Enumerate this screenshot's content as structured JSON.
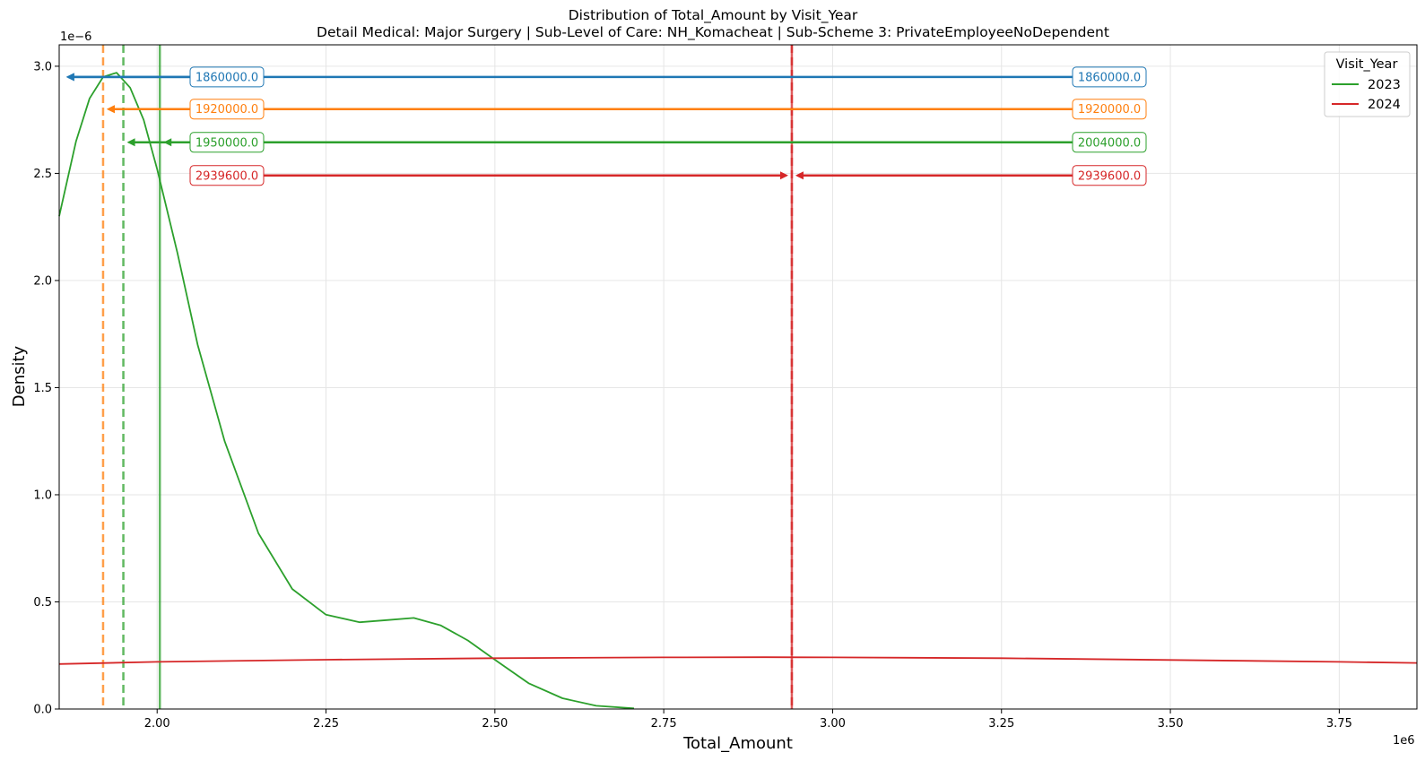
{
  "chart_data": {
    "type": "line",
    "title": "Distribution of Total_Amount by Visit_Year",
    "subtitle": "Detail Medical: Major Surgery | Sub-Level of Care: NH_Komacheat | Sub-Scheme 3: PrivateEmployeeNoDependent",
    "xlabel": "Total_Amount",
    "ylabel": "Density",
    "x_offset_label": "1e6",
    "y_offset_label": "1e−6",
    "xlim": [
      1855000,
      3865000
    ],
    "ylim": [
      0,
      3.1e-06
    ],
    "xticks": [
      2000000,
      2250000,
      2500000,
      2750000,
      3000000,
      3250000,
      3500000,
      3750000
    ],
    "xtick_labels": [
      "2.00",
      "2.25",
      "2.50",
      "2.75",
      "3.00",
      "3.25",
      "3.50",
      "3.75"
    ],
    "yticks": [
      0,
      5e-07,
      1e-06,
      1.5e-06,
      2e-06,
      2.5e-06,
      3e-06
    ],
    "ytick_labels": [
      "0.0",
      "0.5",
      "1.0",
      "1.5",
      "2.0",
      "2.5",
      "3.0"
    ],
    "grid": true,
    "legend": {
      "title": "Visit_Year",
      "placement": "top-right"
    },
    "series": [
      {
        "name": "2023",
        "color": "#2ca02c",
        "x": [
          1855000,
          1880000,
          1900000,
          1920000,
          1940000,
          1960000,
          1980000,
          2000000,
          2030000,
          2060000,
          2100000,
          2150000,
          2200000,
          2250000,
          2300000,
          2340000,
          2380000,
          2420000,
          2460000,
          2500000,
          2550000,
          2600000,
          2650000,
          2706000
        ],
        "y": [
          2.3e-06,
          2.65e-06,
          2.85e-06,
          2.95e-06,
          2.97e-06,
          2.9e-06,
          2.75e-06,
          2.52e-06,
          2.13e-06,
          1.7e-06,
          1.25e-06,
          8.2e-07,
          5.6e-07,
          4.4e-07,
          4.05e-07,
          4.15e-07,
          4.25e-07,
          3.9e-07,
          3.2e-07,
          2.3e-07,
          1.2e-07,
          5e-08,
          1.5e-08,
          3e-09
        ]
      },
      {
        "name": "2024",
        "color": "#d62728",
        "x": [
          1855000,
          2000000,
          2250000,
          2500000,
          2750000,
          2900000,
          3000000,
          3250000,
          3500000,
          3750000,
          3865000
        ],
        "y": [
          2.1e-07,
          2.2e-07,
          2.3e-07,
          2.37e-07,
          2.41e-07,
          2.42e-07,
          2.41e-07,
          2.37e-07,
          2.29e-07,
          2.2e-07,
          2.15e-07
        ]
      }
    ],
    "vlines": [
      {
        "x": 1920000,
        "color": "#ff7f0e",
        "style": "dashed"
      },
      {
        "x": 1950000,
        "color": "#2ca02c",
        "style": "dashed"
      },
      {
        "x": 2004000,
        "color": "#2ca02c",
        "style": "solid"
      },
      {
        "x": 2939600,
        "color": "#d62728",
        "style": "dashed"
      },
      {
        "x": 2939600,
        "color": "#d62728",
        "style": "solid"
      }
    ],
    "annotations": [
      {
        "y": 2.95e-06,
        "color": "#1f77b4",
        "left_label": "1860000.0",
        "right_label": "1860000.0",
        "target_x": 1860000
      },
      {
        "y": 2.8e-06,
        "color": "#ff7f0e",
        "left_label": "1920000.0",
        "right_label": "1920000.0",
        "target_x": 1920000
      },
      {
        "y": 2.645e-06,
        "color": "#2ca02c",
        "left_label": "1950000.0",
        "right_label": "2004000.0",
        "target_x_left": 1950000,
        "target_x_right": 2004000
      },
      {
        "y": 2.49e-06,
        "color": "#d62728",
        "left_label": "2939600.0",
        "right_label": "2939600.0",
        "target_x": 2939600
      }
    ]
  }
}
